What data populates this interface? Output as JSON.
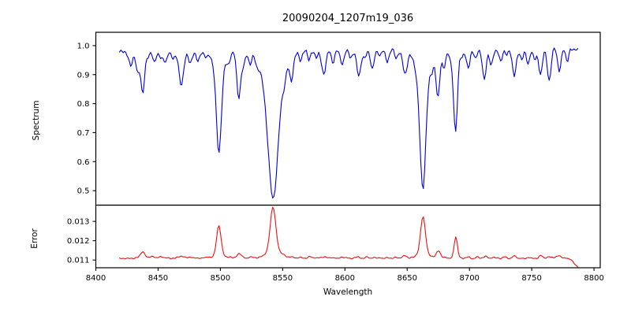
{
  "title": "20090204_1207m19_036",
  "xlabel": "Wavelength",
  "xticks": [
    [
      8400,
      "8400"
    ],
    [
      8450,
      "8450"
    ],
    [
      8500,
      "8500"
    ],
    [
      8550,
      "8550"
    ],
    [
      8600,
      "8600"
    ],
    [
      8650,
      "8650"
    ],
    [
      8700,
      "8700"
    ],
    [
      8750,
      "8750"
    ],
    [
      8800,
      "8800"
    ]
  ],
  "chart_data": [
    {
      "type": "line",
      "name": "spectrum",
      "ylabel": "Spectrum",
      "color": "#0000e0",
      "xlim": [
        8400,
        8805
      ],
      "ylim": [
        0.45,
        1.046
      ],
      "yticks": [
        [
          0.5,
          "0.5"
        ],
        [
          0.6,
          "0.6"
        ],
        [
          0.7,
          "0.7"
        ],
        [
          0.8,
          "0.8"
        ],
        [
          0.9,
          "0.9"
        ],
        [
          1.0,
          "1.0"
        ]
      ],
      "x_start": 8419,
      "x_end": 8787,
      "step": 1,
      "continuum": 0.985,
      "tilt": [
        -0.007,
        0.004
      ],
      "noise_amp": 0.0095,
      "seed": 11,
      "absorption_lines": [
        [
          8428,
          0.935,
          1.5
        ],
        [
          8433.5,
          0.915,
          1.3
        ],
        [
          8437.6,
          0.845,
          1.5
        ],
        [
          8442,
          0.965,
          1.2
        ],
        [
          8447,
          0.95,
          1.3
        ],
        [
          8452,
          0.962,
          1.2
        ],
        [
          8456,
          0.947,
          1.4
        ],
        [
          8462,
          0.96,
          1.2
        ],
        [
          8468.6,
          0.872,
          1.9
        ],
        [
          8476,
          0.945,
          1.4
        ],
        [
          8482,
          0.952,
          1.3
        ],
        [
          8488,
          0.965,
          1.2
        ],
        [
          8498.8,
          0.705,
          2.0
        ],
        [
          8498.8,
          0.915,
          4.0
        ],
        [
          8506.5,
          0.952,
          1.3
        ],
        [
          8514.8,
          0.826,
          1.6
        ],
        [
          8518.5,
          0.935,
          1.3
        ],
        [
          8524,
          0.944,
          1.3
        ],
        [
          8530,
          0.965,
          1.2
        ],
        [
          8542.3,
          0.675,
          3.5
        ],
        [
          8542.3,
          0.785,
          7.0
        ],
        [
          8551,
          0.955,
          1.3
        ],
        [
          8557,
          0.9,
          1.4
        ],
        [
          8564.5,
          0.95,
          1.2
        ],
        [
          8571,
          0.953,
          1.2
        ],
        [
          8577,
          0.965,
          1.1
        ],
        [
          8583,
          0.905,
          1.7
        ],
        [
          8590.5,
          0.944,
          1.2
        ],
        [
          8598,
          0.938,
          1.3
        ],
        [
          8604.5,
          0.958,
          1.2
        ],
        [
          8611.2,
          0.902,
          1.7
        ],
        [
          8616,
          0.955,
          1.2
        ],
        [
          8622,
          0.924,
          1.4
        ],
        [
          8628,
          0.962,
          1.1
        ],
        [
          8634,
          0.944,
          1.3
        ],
        [
          8641,
          0.954,
          1.2
        ],
        [
          8648.3,
          0.9,
          1.6
        ],
        [
          8662.6,
          0.625,
          2.2
        ],
        [
          8662.6,
          0.86,
          5.0
        ],
        [
          8670,
          0.945,
          1.2
        ],
        [
          8674.7,
          0.83,
          1.5
        ],
        [
          8679.5,
          0.926,
          1.3
        ],
        [
          8684.8,
          0.95,
          1.2
        ],
        [
          8688.8,
          0.7,
          1.6
        ],
        [
          8694,
          0.962,
          1.1
        ],
        [
          8699,
          0.916,
          1.4
        ],
        [
          8705,
          0.95,
          1.2
        ],
        [
          8711.9,
          0.884,
          1.5
        ],
        [
          8717.4,
          0.928,
          1.3
        ],
        [
          8725,
          0.944,
          1.2
        ],
        [
          8730,
          0.96,
          1.1
        ],
        [
          8736,
          0.894,
          1.6
        ],
        [
          8742,
          0.95,
          1.2
        ],
        [
          8747,
          0.936,
          1.3
        ],
        [
          8752.5,
          0.948,
          1.2
        ],
        [
          8757.2,
          0.898,
          1.4
        ],
        [
          8764,
          0.88,
          1.5
        ],
        [
          8772,
          0.914,
          1.4
        ],
        [
          8778.5,
          0.948,
          1.2
        ]
      ]
    },
    {
      "type": "line",
      "name": "error",
      "ylabel": "Error",
      "color": "#f01010",
      "xlim": [
        8400,
        8805
      ],
      "ylim": [
        0.0106,
        0.01384
      ],
      "yticks": [
        [
          0.011,
          "0.011"
        ],
        [
          0.012,
          "0.012"
        ],
        [
          0.013,
          "0.013"
        ]
      ],
      "x_start": 8419,
      "x_end": 8787,
      "step": 1,
      "base": 0.0111,
      "tilt": [
        0.0,
        -2e-05
      ],
      "noise_amp": 4.5e-05,
      "seed": 29,
      "peaks": [
        [
          8437.6,
          0.01142,
          1.8
        ],
        [
          8445,
          0.01122,
          1.8
        ],
        [
          8452,
          0.01118,
          1.5
        ],
        [
          8468.6,
          0.01122,
          2.2
        ],
        [
          8476,
          0.01116,
          1.5
        ],
        [
          8490,
          0.01115,
          1.5
        ],
        [
          8498.8,
          0.01262,
          1.7
        ],
        [
          8498.8,
          0.0113,
          3.5
        ],
        [
          8507,
          0.01116,
          1.5
        ],
        [
          8515,
          0.01133,
          1.8
        ],
        [
          8524,
          0.01116,
          1.5
        ],
        [
          8542.3,
          0.01335,
          2.2
        ],
        [
          8542.3,
          0.0115,
          5.5
        ],
        [
          8551,
          0.0112,
          1.5
        ],
        [
          8557.5,
          0.01118,
          1.5
        ],
        [
          8565,
          0.01114,
          1.4
        ],
        [
          8572,
          0.01118,
          1.6
        ],
        [
          8583,
          0.01117,
          1.7
        ],
        [
          8590,
          0.01114,
          1.4
        ],
        [
          8598,
          0.01115,
          1.4
        ],
        [
          8611,
          0.01116,
          1.6
        ],
        [
          8618,
          0.01118,
          1.4
        ],
        [
          8626,
          0.01113,
          1.4
        ],
        [
          8634,
          0.01115,
          1.4
        ],
        [
          8641,
          0.01114,
          1.3
        ],
        [
          8648,
          0.01124,
          1.6
        ],
        [
          8662.7,
          0.01297,
          1.9
        ],
        [
          8662.7,
          0.0114,
          4.5
        ],
        [
          8675,
          0.01148,
          1.7
        ],
        [
          8681,
          0.01118,
          1.3
        ],
        [
          8689,
          0.01222,
          1.3
        ],
        [
          8699,
          0.01117,
          1.4
        ],
        [
          8706,
          0.01115,
          1.3
        ],
        [
          8713,
          0.01122,
          1.5
        ],
        [
          8719,
          0.01116,
          1.3
        ],
        [
          8728,
          0.01118,
          1.4
        ],
        [
          8736,
          0.01123,
          1.5
        ],
        [
          8742,
          0.01114,
          1.3
        ],
        [
          8748,
          0.01117,
          1.3
        ],
        [
          8757,
          0.01126,
          1.4
        ],
        [
          8764,
          0.0112,
          1.3
        ],
        [
          8771.5,
          0.01128,
          1.5
        ],
        [
          8778,
          0.01112,
          1.3
        ],
        [
          8787,
          0.01068,
          3.0
        ]
      ]
    }
  ]
}
